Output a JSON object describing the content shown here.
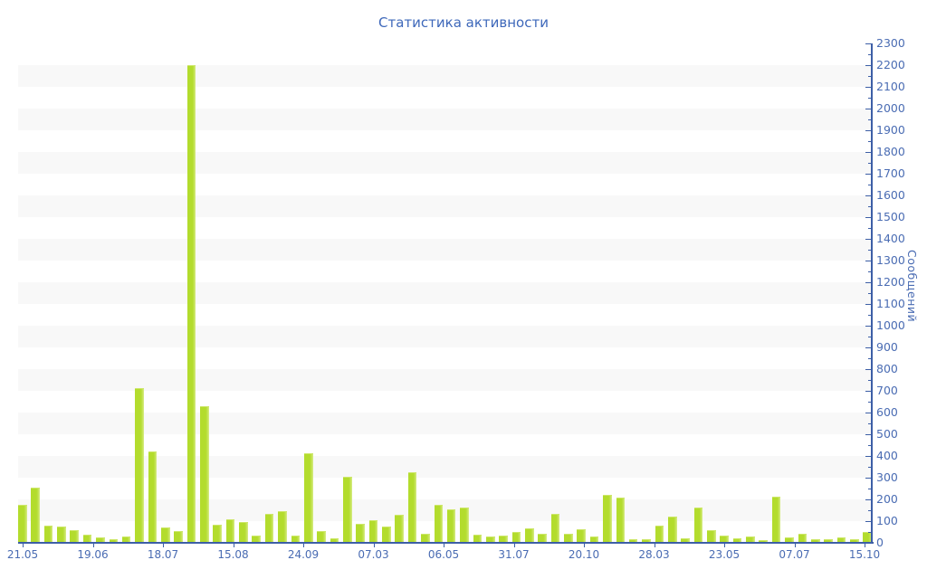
{
  "chart": {
    "title": "Статистика активности",
    "colors": {
      "bar": "#b3dc2d",
      "bar_light_edge": "#d8ec8b",
      "axis_line": "#3d5fa6",
      "tick_label": "#4a6cb3",
      "title_text": "#3e68ba",
      "stripe_band": "#f8f8f8",
      "background": "#ffffff"
    }
  },
  "chart_data": {
    "type": "bar",
    "title": "Статистика активности",
    "xlabel": "",
    "ylabel": "Сообщений",
    "ylim": [
      0,
      2300
    ],
    "y_tick_step": 100,
    "y_minor_tick_step": 50,
    "grid": "alternating horizontal bands, no lines",
    "legend": "none",
    "y_tick_labels": [
      "0",
      "100",
      "200",
      "300",
      "400",
      "500",
      "600",
      "700",
      "800",
      "900",
      "1000",
      "1100",
      "1200",
      "1300",
      "1400",
      "1500",
      "1600",
      "1700",
      "1800",
      "1900",
      "2000",
      "2100",
      "2200",
      "2300"
    ],
    "x_tick_labels": [
      "21.05",
      "19.06",
      "18.07",
      "15.08",
      "24.09",
      "07.03",
      "06.05",
      "31.07",
      "20.10",
      "28.03",
      "23.05",
      "07.07",
      "15.10"
    ],
    "values": [
      170,
      250,
      75,
      72,
      54,
      35,
      21,
      14,
      27,
      710,
      415,
      65,
      50,
      2195,
      625,
      80,
      105,
      93,
      30,
      130,
      141,
      31,
      410,
      50,
      17,
      300,
      85,
      100,
      70,
      125,
      320,
      38,
      170,
      150,
      160,
      35,
      25,
      31,
      45,
      63,
      39,
      128,
      39,
      58,
      24,
      215,
      205,
      14,
      11,
      74,
      118,
      18,
      160,
      53,
      28,
      17,
      25,
      7,
      210,
      21,
      39,
      14,
      14,
      21,
      14,
      45
    ]
  }
}
